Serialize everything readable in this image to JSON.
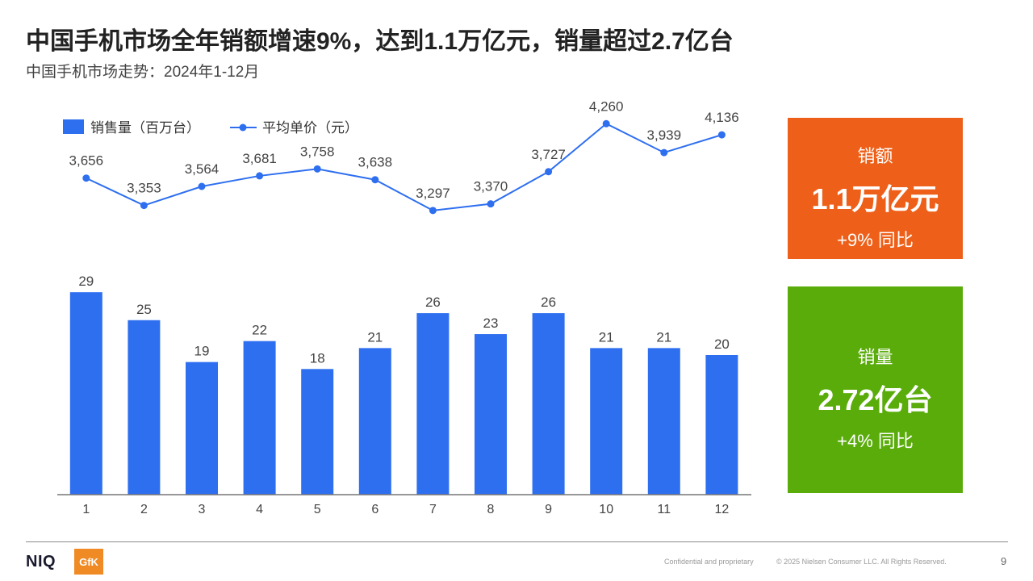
{
  "header": {
    "title": "中国手机市场全年销额增速9%，达到1.1万亿元，销量超过2.7亿台",
    "subtitle": "中国手机市场走势：2024年1-12月"
  },
  "colors": {
    "bar": "#2e6ff0",
    "line": "#2e6ff0",
    "revenue_card": "#ee6019",
    "volume_card": "#5aac0b",
    "axis": "#777777"
  },
  "chart_data": {
    "type": "bar",
    "categories": [
      "1",
      "2",
      "3",
      "4",
      "5",
      "6",
      "7",
      "8",
      "9",
      "10",
      "11",
      "12"
    ],
    "series": [
      {
        "name": "销售量（百万台）",
        "type": "bar",
        "values": [
          29,
          25,
          19,
          22,
          18,
          21,
          26,
          23,
          26,
          21,
          21,
          20
        ]
      },
      {
        "name": "平均单价（元）",
        "type": "line",
        "values": [
          3656,
          3353,
          3564,
          3681,
          3758,
          3638,
          3297,
          3370,
          3727,
          4260,
          3939,
          4136
        ]
      }
    ],
    "value_labels": {
      "bar": [
        "29",
        "25",
        "19",
        "22",
        "18",
        "21",
        "26",
        "23",
        "26",
        "21",
        "21",
        "20"
      ],
      "line": [
        "3,656",
        "3,353",
        "3,564",
        "3,681",
        "3,758",
        "3,638",
        "3,297",
        "3,370",
        "3,727",
        "4,260",
        "3,939",
        "4,136"
      ]
    },
    "legend": "top-left",
    "grid": false
  },
  "cards": {
    "revenue": {
      "label": "销额",
      "value": "1.1万亿元",
      "change": "+9% 同比"
    },
    "volume": {
      "label": "销量",
      "value": "2.72亿台",
      "change": "+4% 同比"
    }
  },
  "footer": {
    "logo_niq": "NIQ",
    "logo_gfk": "GfK",
    "confidential": "Confidential and proprietary",
    "copyright": "© 2025 Nielsen Consumer LLC. All Rights Reserved.",
    "page": "9"
  }
}
